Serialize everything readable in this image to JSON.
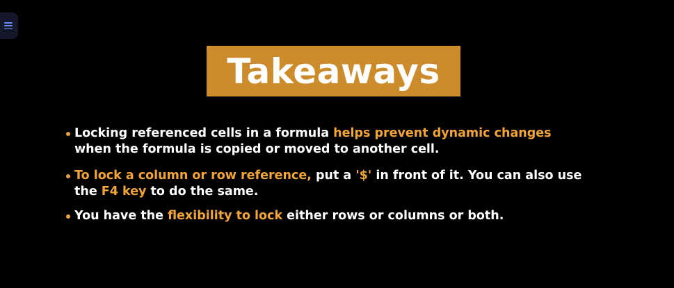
{
  "menu": {
    "icon": "hamburger-menu-icon"
  },
  "slide": {
    "title": "Takeaways",
    "colors": {
      "background": "#000000",
      "title_box": "#cd8c2c",
      "highlight": "#f3a637",
      "text": "#ffffff"
    },
    "bullets": [
      {
        "t1": "Locking referenced cells in a formula ",
        "h1": "helps prevent dynamic changes",
        "t2": " when the formula is copied or moved to another cell."
      },
      {
        "h1": "To lock a column or row reference,",
        "t1": " put a ",
        "h2": "'$'",
        "t2": " in front of it. You can also use the ",
        "h3": "F4 key",
        "t3": " to do the same."
      },
      {
        "t1": "You have the ",
        "h1": "flexibility to lock",
        "t2": " either rows or columns or both."
      }
    ]
  }
}
